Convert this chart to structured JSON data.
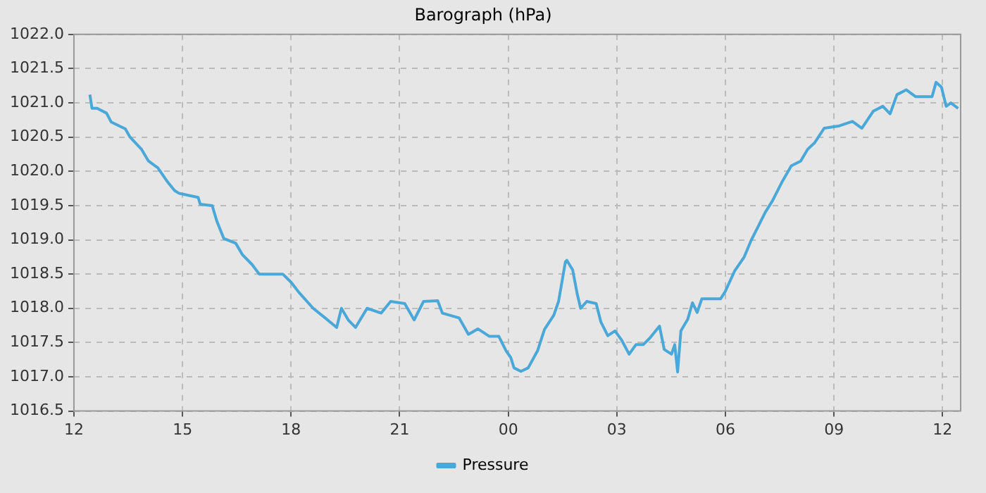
{
  "chart_data": {
    "type": "line",
    "title": "Barograph (hPa)",
    "x": [
      12.44,
      12.5,
      12.64,
      12.9,
      13.03,
      13.42,
      13.55,
      13.87,
      14.06,
      14.32,
      14.58,
      14.78,
      14.9,
      15.43,
      15.49,
      15.82,
      15.95,
      16.14,
      16.47,
      16.66,
      16.92,
      17.12,
      17.77,
      18.0,
      18.22,
      18.61,
      18.94,
      19.26,
      19.39,
      19.58,
      19.78,
      20.1,
      20.49,
      20.75,
      21.14,
      21.4,
      21.66,
      22.05,
      22.18,
      22.64,
      22.9,
      23.16,
      23.48,
      23.74,
      23.94,
      24.07,
      24.16,
      24.35,
      24.55,
      24.81,
      25.0,
      25.26,
      25.39,
      25.58,
      25.62,
      25.78,
      25.91,
      26.0,
      26.17,
      26.43,
      26.56,
      26.75,
      26.95,
      27.14,
      27.34,
      27.53,
      27.73,
      27.92,
      28.18,
      28.31,
      28.51,
      28.6,
      28.68,
      28.77,
      28.96,
      29.09,
      29.22,
      29.35,
      29.61,
      29.87,
      30.0,
      30.26,
      30.52,
      30.71,
      30.91,
      31.1,
      31.3,
      31.56,
      31.82,
      32.08,
      32.27,
      32.47,
      32.73,
      33.12,
      33.51,
      33.77,
      34.09,
      34.35,
      34.55,
      34.74,
      35.0,
      35.26,
      35.71,
      35.82,
      35.97,
      36.1,
      36.23,
      36.43
    ],
    "series": [
      {
        "name": "Pressure",
        "color": "#4aa8d8",
        "values": [
          1021.12,
          1020.92,
          1020.92,
          1020.85,
          1020.72,
          1020.62,
          1020.5,
          1020.32,
          1020.15,
          1020.05,
          1019.85,
          1019.72,
          1019.68,
          1019.62,
          1019.52,
          1019.5,
          1019.27,
          1019.02,
          1018.95,
          1018.78,
          1018.64,
          1018.5,
          1018.5,
          1018.38,
          1018.23,
          1018.0,
          1017.86,
          1017.72,
          1018.0,
          1017.83,
          1017.72,
          1018.0,
          1017.93,
          1018.1,
          1018.07,
          1017.83,
          1018.1,
          1018.11,
          1017.93,
          1017.86,
          1017.62,
          1017.7,
          1017.59,
          1017.59,
          1017.38,
          1017.28,
          1017.13,
          1017.08,
          1017.13,
          1017.38,
          1017.69,
          1017.9,
          1018.1,
          1018.68,
          1018.7,
          1018.56,
          1018.2,
          1018.0,
          1018.1,
          1018.07,
          1017.8,
          1017.6,
          1017.67,
          1017.53,
          1017.33,
          1017.47,
          1017.47,
          1017.57,
          1017.74,
          1017.4,
          1017.33,
          1017.47,
          1017.07,
          1017.67,
          1017.84,
          1018.08,
          1017.94,
          1018.14,
          1018.14,
          1018.14,
          1018.25,
          1018.55,
          1018.75,
          1018.99,
          1019.2,
          1019.4,
          1019.57,
          1019.84,
          1020.08,
          1020.15,
          1020.32,
          1020.42,
          1020.63,
          1020.66,
          1020.73,
          1020.63,
          1020.88,
          1020.95,
          1020.84,
          1021.12,
          1021.19,
          1021.09,
          1021.09,
          1021.3,
          1021.23,
          1020.95,
          1021.0,
          1020.92
        ]
      }
    ],
    "xlim": [
      12,
      36.5
    ],
    "xticks": [
      {
        "value": 12,
        "label": "12"
      },
      {
        "value": 15,
        "label": "15"
      },
      {
        "value": 18,
        "label": "18"
      },
      {
        "value": 21,
        "label": "21"
      },
      {
        "value": 24,
        "label": "00"
      },
      {
        "value": 27,
        "label": "03"
      },
      {
        "value": 30,
        "label": "06"
      },
      {
        "value": 33,
        "label": "09"
      },
      {
        "value": 36,
        "label": "12"
      }
    ],
    "ylim": [
      1016.5,
      1022
    ],
    "yticks": [
      {
        "value": 1016.5,
        "label": "1016.5"
      },
      {
        "value": 1017,
        "label": "1017.0"
      },
      {
        "value": 1017.5,
        "label": "1017.5"
      },
      {
        "value": 1018,
        "label": "1018.0"
      },
      {
        "value": 1018.5,
        "label": "1018.5"
      },
      {
        "value": 1019,
        "label": "1019.0"
      },
      {
        "value": 1019.5,
        "label": "1019.5"
      },
      {
        "value": 1020,
        "label": "1020.0"
      },
      {
        "value": 1020.5,
        "label": "1020.5"
      },
      {
        "value": 1021,
        "label": "1021.0"
      },
      {
        "value": 1021.5,
        "label": "1021.5"
      },
      {
        "value": 1022,
        "label": "1022.0"
      }
    ],
    "grid": true,
    "legend": "bottom",
    "marker": "none",
    "line_style": "solid"
  }
}
